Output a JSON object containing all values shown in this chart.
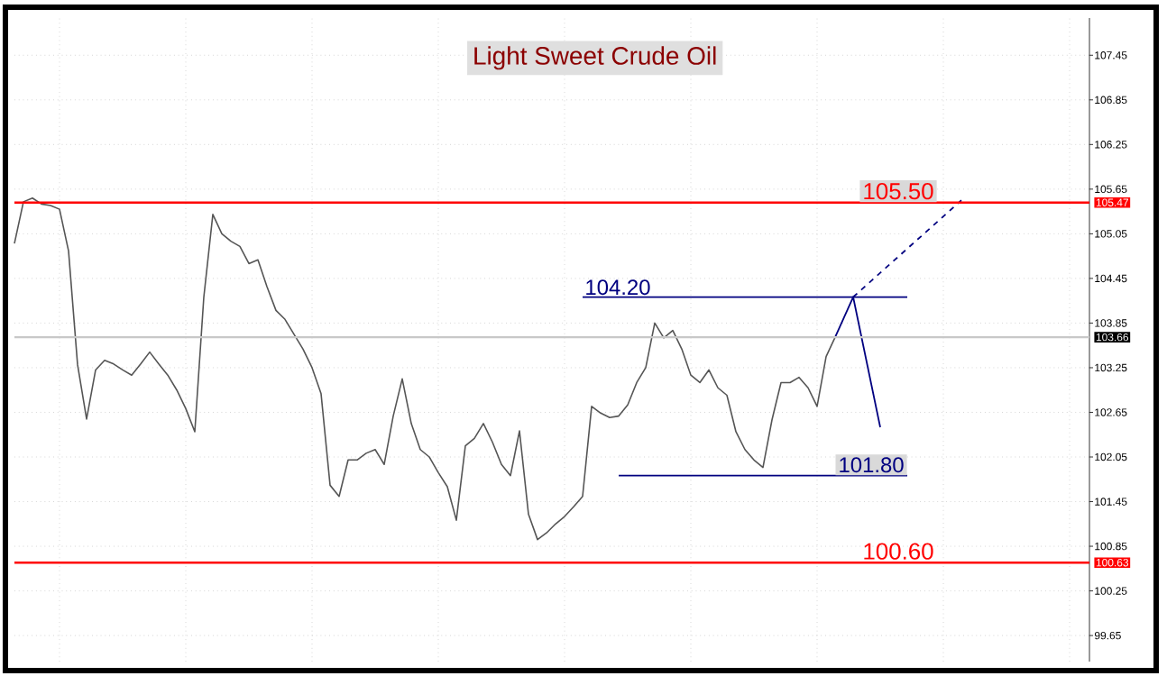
{
  "chart_data": {
    "type": "line",
    "title": "Light Sweet Crude Oil",
    "categories": [
      null,
      null,
      null,
      null,
      null,
      null,
      null,
      null,
      null,
      null,
      null,
      null,
      null,
      null,
      null,
      null,
      null,
      null,
      null,
      null,
      null,
      null,
      null,
      null,
      null,
      null,
      null,
      null,
      null,
      null,
      null,
      null,
      null,
      null,
      null,
      null,
      null,
      null,
      null,
      null,
      null,
      null,
      null,
      null,
      null,
      null,
      null,
      null,
      null,
      null,
      null,
      null,
      null,
      null,
      null,
      null,
      null,
      null,
      null,
      null,
      null,
      null,
      null,
      null,
      null,
      null,
      null,
      null,
      null,
      null,
      null,
      null,
      null,
      null,
      null,
      null,
      null,
      null,
      null,
      null,
      null,
      null,
      null,
      null,
      null,
      null,
      null,
      null,
      null,
      null,
      null,
      null,
      null,
      null,
      null,
      null,
      null,
      null,
      null,
      null,
      null,
      null,
      null,
      null,
      null,
      null,
      null,
      null,
      null,
      null,
      null,
      null,
      null,
      null,
      null,
      null,
      null,
      null,
      null,
      null
    ],
    "series": [
      {
        "color": "#555555",
        "values": [
          104.92,
          105.48,
          105.53,
          105.45,
          105.43,
          105.38,
          104.82,
          103.29,
          102.56,
          103.22,
          103.35,
          103.3,
          103.22,
          103.15,
          103.3,
          103.46,
          103.3,
          103.15,
          102.95,
          102.7,
          102.39,
          104.2,
          105.31,
          105.05,
          104.95,
          104.88,
          104.65,
          104.7,
          104.34,
          104.02,
          103.9,
          103.7,
          103.5,
          103.25,
          102.9,
          101.67,
          101.52,
          102.01,
          102.01,
          102.1,
          102.15,
          101.95,
          102.6,
          103.1,
          102.5,
          102.15,
          102.05,
          101.84,
          101.65,
          101.2,
          102.2,
          102.3,
          102.5,
          102.25,
          101.95,
          101.8,
          102.4,
          101.28,
          100.94,
          101.03,
          101.15,
          101.25,
          101.38,
          101.52,
          102.73,
          102.64,
          102.58,
          102.6,
          102.75,
          103.05,
          103.25,
          103.85,
          103.65,
          103.75,
          103.5,
          103.15,
          103.05,
          103.22,
          102.98,
          102.88,
          102.39,
          102.15,
          102.01,
          101.91,
          102.55,
          103.05,
          103.05,
          103.12,
          102.98,
          102.73,
          103.4,
          103.66,
          null,
          null,
          null,
          null,
          null,
          null,
          null,
          null,
          null,
          null,
          null,
          null,
          null,
          null,
          null,
          null,
          null,
          null,
          null,
          null,
          null,
          null,
          null,
          null,
          null,
          null,
          null,
          null
        ]
      },
      {
        "name": "104.20",
        "color": "#000080",
        "values": [
          null,
          null,
          null,
          null,
          null,
          null,
          null,
          null,
          null,
          null,
          null,
          null,
          null,
          null,
          null,
          null,
          null,
          null,
          null,
          null,
          null,
          null,
          null,
          null,
          null,
          null,
          null,
          null,
          null,
          null,
          null,
          null,
          null,
          null,
          null,
          null,
          null,
          null,
          null,
          null,
          null,
          null,
          null,
          null,
          null,
          null,
          null,
          null,
          null,
          null,
          null,
          null,
          null,
          null,
          null,
          null,
          null,
          null,
          null,
          null,
          null,
          null,
          null,
          104.2,
          104.2,
          104.2,
          104.2,
          104.2,
          104.2,
          104.2,
          104.2,
          104.2,
          104.2,
          104.2,
          104.2,
          104.2,
          104.2,
          104.2,
          104.2,
          104.2,
          104.2,
          104.2,
          104.2,
          104.2,
          104.2,
          104.2,
          104.2,
          104.2,
          104.2,
          104.2,
          104.2,
          104.2,
          104.2,
          104.2,
          104.2,
          104.2,
          104.2,
          104.2,
          104.2,
          104.2,
          null,
          null,
          null,
          null,
          null,
          null,
          null,
          null,
          null,
          null,
          null,
          null,
          null,
          null,
          null,
          null,
          null,
          null,
          null,
          null
        ]
      },
      {
        "name": "101.80",
        "color": "#000080",
        "values": [
          null,
          null,
          null,
          null,
          null,
          null,
          null,
          null,
          null,
          null,
          null,
          null,
          null,
          null,
          null,
          null,
          null,
          null,
          null,
          null,
          null,
          null,
          null,
          null,
          null,
          null,
          null,
          null,
          null,
          null,
          null,
          null,
          null,
          null,
          null,
          null,
          null,
          null,
          null,
          null,
          null,
          null,
          null,
          null,
          null,
          null,
          null,
          null,
          null,
          null,
          null,
          null,
          null,
          null,
          null,
          null,
          null,
          null,
          null,
          null,
          null,
          null,
          null,
          null,
          null,
          null,
          null,
          101.8,
          101.8,
          101.8,
          101.8,
          101.8,
          101.8,
          101.8,
          101.8,
          101.8,
          101.8,
          101.8,
          101.8,
          101.8,
          101.8,
          101.8,
          101.8,
          101.8,
          101.8,
          101.8,
          101.8,
          101.8,
          101.8,
          101.8,
          101.8,
          101.8,
          101.8,
          101.8,
          101.8,
          101.8,
          101.8,
          101.8,
          101.8,
          101.8,
          null,
          null,
          null,
          null,
          null,
          null,
          null,
          null,
          null,
          null,
          null,
          null,
          null,
          null,
          null,
          null,
          null,
          null,
          null,
          null
        ]
      },
      {
        "color": "#000080",
        "values": [
          null,
          null,
          null,
          null,
          null,
          null,
          null,
          null,
          null,
          null,
          null,
          null,
          null,
          null,
          null,
          null,
          null,
          null,
          null,
          null,
          null,
          null,
          null,
          null,
          null,
          null,
          null,
          null,
          null,
          null,
          null,
          null,
          null,
          null,
          null,
          null,
          null,
          null,
          null,
          null,
          null,
          null,
          null,
          null,
          null,
          null,
          null,
          null,
          null,
          null,
          null,
          null,
          null,
          null,
          null,
          null,
          null,
          null,
          null,
          null,
          null,
          null,
          null,
          null,
          null,
          null,
          null,
          null,
          null,
          null,
          null,
          null,
          null,
          null,
          null,
          null,
          null,
          null,
          null,
          null,
          null,
          null,
          null,
          null,
          null,
          null,
          null,
          null,
          null,
          null,
          null,
          103.66,
          null,
          104.2,
          null,
          null,
          102.45,
          null,
          null,
          null,
          null,
          null,
          null,
          null,
          null,
          null,
          null,
          null,
          null,
          null,
          null,
          null,
          null,
          null,
          null,
          null,
          null,
          null,
          null,
          null
        ]
      },
      {
        "color": "#000080",
        "line_style": "dashed",
        "values": [
          null,
          null,
          null,
          null,
          null,
          null,
          null,
          null,
          null,
          null,
          null,
          null,
          null,
          null,
          null,
          null,
          null,
          null,
          null,
          null,
          null,
          null,
          null,
          null,
          null,
          null,
          null,
          null,
          null,
          null,
          null,
          null,
          null,
          null,
          null,
          null,
          null,
          null,
          null,
          null,
          null,
          null,
          null,
          null,
          null,
          null,
          null,
          null,
          null,
          null,
          null,
          null,
          null,
          null,
          null,
          null,
          null,
          null,
          null,
          null,
          null,
          null,
          null,
          null,
          null,
          null,
          null,
          null,
          null,
          null,
          null,
          null,
          null,
          null,
          null,
          null,
          null,
          null,
          null,
          null,
          null,
          null,
          null,
          null,
          null,
          null,
          null,
          null,
          null,
          null,
          null,
          null,
          null,
          104.2,
          null,
          null,
          null,
          null,
          null,
          null,
          null,
          null,
          null,
          null,
          null,
          105.5,
          null,
          null,
          null,
          null,
          null,
          null,
          null,
          null,
          null,
          null,
          null,
          null,
          null,
          null
        ]
      }
    ],
    "ylim": [
      99.3,
      107.95
    ],
    "yticks": [
      99.65,
      100.25,
      100.85,
      101.45,
      102.05,
      102.65,
      103.25,
      103.85,
      104.45,
      105.05,
      105.65,
      106.25,
      106.85,
      107.45
    ],
    "ref_lines": [
      {
        "axis": "y",
        "value": 105.47,
        "label": "105.47",
        "color": "#ff0000"
      },
      {
        "axis": "y",
        "value": 100.63,
        "label": "100.63",
        "color": "#ff0000"
      },
      {
        "axis": "y",
        "value": 103.66,
        "label": "103.66",
        "color": "#c8c8c8"
      }
    ],
    "annotations": [
      "105.50",
      "100.60"
    ],
    "grid": true,
    "tick_labels": "y"
  }
}
